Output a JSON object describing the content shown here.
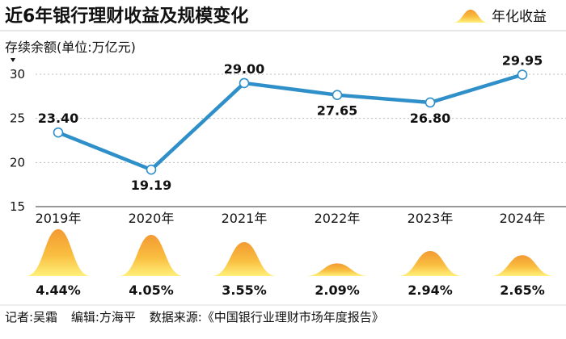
{
  "header": {
    "title": "近6年银行理财收益及规模变化",
    "legend_label": "年化收益"
  },
  "footer": {
    "reporter": "记者:吴霜",
    "editor": "编辑:方海平",
    "source": "数据来源:《中国银行业理财市场年度报告》"
  },
  "colors": {
    "line": "#2f8fc8",
    "accent_top": "#f7a23b",
    "accent_bottom": "#ffe066",
    "dashed_grid": "#bbbbbb"
  },
  "chart_data": {
    "type": "line",
    "title": "近6年银行理财收益及规模变化",
    "ylabel": "存续余额(单位:万亿元)",
    "ylim": [
      15,
      30
    ],
    "yticks": [
      "15",
      "20",
      "25",
      "30"
    ],
    "categories": [
      "2019年",
      "2020年",
      "2021年",
      "2022年",
      "2023年",
      "2024年"
    ],
    "series": [
      {
        "name": "存续余额",
        "values": [
          23.4,
          19.19,
          29.0,
          27.65,
          26.8,
          29.95
        ],
        "labels": [
          "23.40",
          "19.19",
          "29.00",
          "27.65",
          "26.80",
          "29.95"
        ]
      },
      {
        "name": "年化收益",
        "values": [
          4.44,
          4.05,
          3.55,
          2.09,
          2.94,
          2.65
        ],
        "labels": [
          "4.44%",
          "4.05%",
          "3.55%",
          "2.09%",
          "2.94%",
          "2.65%"
        ]
      }
    ],
    "label_positions": [
      "above",
      "below",
      "above",
      "below",
      "below",
      "above"
    ]
  }
}
